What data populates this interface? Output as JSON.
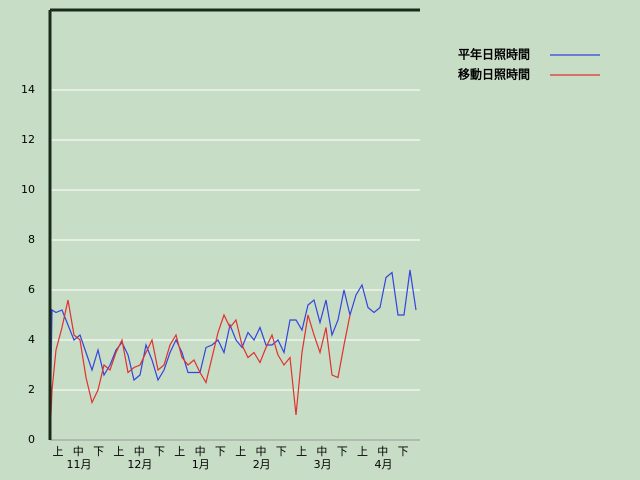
{
  "chart_data": {
    "type": "line",
    "categories": [
      "上",
      "中",
      "下",
      "上",
      "中",
      "下",
      "上",
      "中",
      "下",
      "上",
      "中",
      "下",
      "上",
      "中",
      "下",
      "上",
      "中",
      "下"
    ],
    "months": [
      "11月",
      "12月",
      "1月",
      "2月",
      "3月",
      "4月"
    ],
    "x": [
      0,
      1,
      3,
      6,
      9,
      12,
      15,
      18,
      21,
      24,
      27,
      30,
      33,
      36,
      39,
      42,
      45,
      48,
      51,
      54,
      57,
      60,
      63,
      66,
      69,
      72,
      75,
      78,
      81,
      84,
      87,
      90,
      93,
      96,
      99,
      102,
      105,
      108,
      111,
      114,
      117,
      120,
      123,
      126,
      129,
      132,
      135,
      138,
      141,
      144,
      147,
      150,
      153,
      156,
      159,
      162,
      165,
      168,
      171,
      174,
      177,
      180,
      183
    ],
    "xlim": [
      0,
      185
    ],
    "series": [
      {
        "name": "平年日照時間",
        "color": "#3344dd",
        "values": [
          0,
          5.2,
          5.1,
          5.2,
          4.6,
          4.0,
          4.2,
          3.5,
          2.8,
          3.6,
          2.6,
          3.0,
          3.6,
          3.9,
          3.4,
          2.4,
          2.6,
          3.8,
          3.2,
          2.4,
          2.8,
          3.5,
          4.0,
          3.5,
          2.7,
          2.7,
          2.7,
          3.7,
          3.8,
          4.0,
          3.5,
          4.6,
          4.0,
          3.7,
          4.3,
          4.0,
          4.5,
          3.8,
          3.8,
          4.0,
          3.5,
          4.8,
          4.8,
          4.4,
          5.4,
          5.6,
          4.7,
          5.6,
          4.2,
          4.8,
          6.0,
          5.0,
          5.8,
          6.2,
          5.3,
          5.1,
          5.3,
          6.5,
          6.7,
          5.0,
          5.0,
          6.8,
          5.2
        ]
      },
      {
        "name": "移動日照時間",
        "color": "#e03030",
        "values": [
          0,
          2.0,
          3.6,
          4.5,
          5.6,
          4.2,
          4.0,
          2.5,
          1.5,
          2.0,
          3.0,
          2.8,
          3.5,
          4.0,
          2.7,
          2.9,
          3.0,
          3.5,
          4.0,
          2.8,
          3.0,
          3.8,
          4.2,
          3.3,
          3.0,
          3.2,
          2.7,
          2.3,
          3.3,
          4.3,
          5.0,
          4.5,
          4.8,
          3.8,
          3.3,
          3.5,
          3.1,
          3.7,
          4.2,
          3.4,
          3.0,
          3.3,
          1.0,
          3.5,
          5.0,
          4.2,
          3.5,
          4.5,
          2.6,
          2.5,
          3.8,
          5.0,
          null,
          null,
          null,
          null,
          null,
          null,
          null,
          null,
          null,
          null,
          null
        ]
      }
    ],
    "ylim": [
      0,
      17.2
    ],
    "yticks": [
      0,
      2,
      4,
      6,
      8,
      10,
      12,
      14
    ],
    "grid": true
  }
}
